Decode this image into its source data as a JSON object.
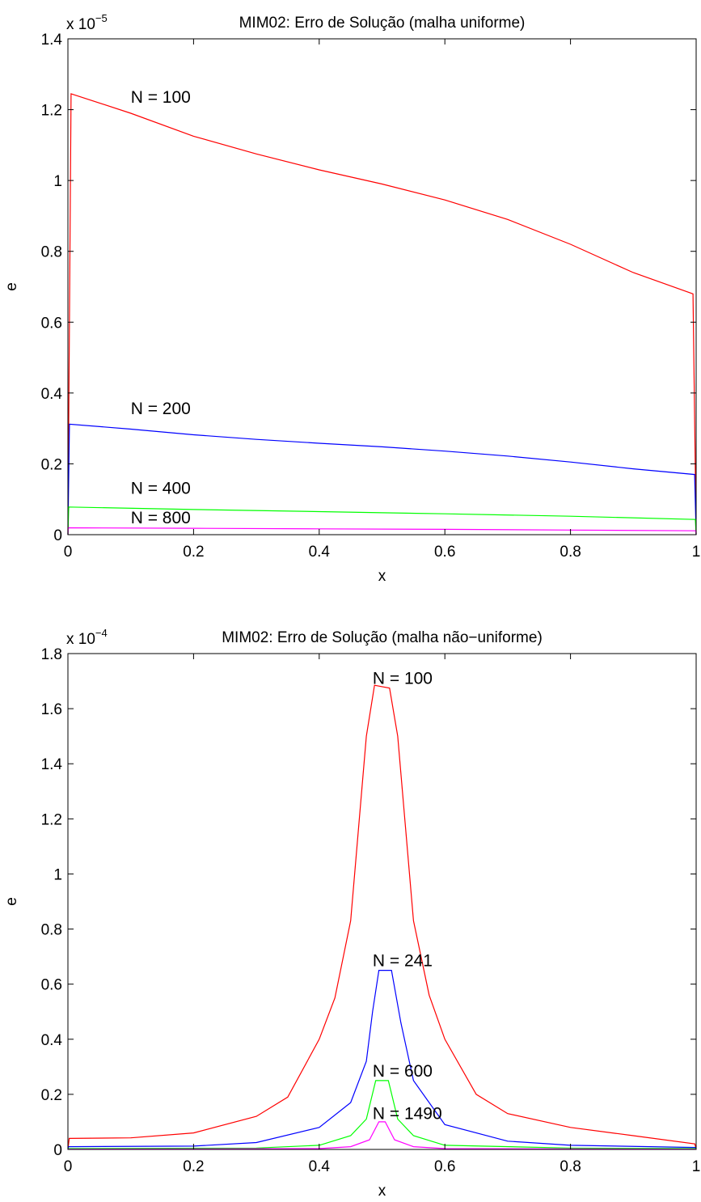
{
  "chart_data": [
    {
      "type": "line",
      "title": "MIM02: Erro de Solução (malha uniforme)",
      "xlabel": "x",
      "ylabel": "e",
      "exponent": {
        "base": "x 10",
        "power": "−5"
      },
      "xlim": [
        0,
        1
      ],
      "ylim": [
        0,
        1.4
      ],
      "xticks": [
        "0",
        "0.2",
        "0.4",
        "0.6",
        "0.8",
        "1"
      ],
      "yticks": [
        "0",
        "0.2",
        "0.4",
        "0.6",
        "0.8",
        "1",
        "1.2",
        "1.4"
      ],
      "grid": false,
      "series": [
        {
          "name": "N = 100",
          "color": "#ff0000",
          "label_at": [
            0.1,
            1.22
          ],
          "points": [
            [
              0,
              0
            ],
            [
              0.005,
              1.245
            ],
            [
              0.1,
              1.19
            ],
            [
              0.2,
              1.125
            ],
            [
              0.3,
              1.075
            ],
            [
              0.4,
              1.03
            ],
            [
              0.5,
              0.99
            ],
            [
              0.6,
              0.945
            ],
            [
              0.7,
              0.89
            ],
            [
              0.8,
              0.82
            ],
            [
              0.9,
              0.74
            ],
            [
              0.995,
              0.68
            ],
            [
              1,
              0
            ]
          ]
        },
        {
          "name": "N = 200",
          "color": "#0000ff",
          "label_at": [
            0.1,
            0.34
          ],
          "points": [
            [
              0,
              0
            ],
            [
              0.0025,
              0.312
            ],
            [
              0.1,
              0.298
            ],
            [
              0.2,
              0.282
            ],
            [
              0.3,
              0.269
            ],
            [
              0.4,
              0.258
            ],
            [
              0.5,
              0.248
            ],
            [
              0.6,
              0.236
            ],
            [
              0.7,
              0.222
            ],
            [
              0.8,
              0.205
            ],
            [
              0.9,
              0.186
            ],
            [
              0.9975,
              0.17
            ],
            [
              1,
              0
            ]
          ]
        },
        {
          "name": "N = 400",
          "color": "#00ff00",
          "label_at": [
            0.1,
            0.115
          ],
          "points": [
            [
              0,
              0
            ],
            [
              0.00125,
              0.078
            ],
            [
              0.2,
              0.071
            ],
            [
              0.4,
              0.065
            ],
            [
              0.5,
              0.062
            ],
            [
              0.6,
              0.059
            ],
            [
              0.8,
              0.052
            ],
            [
              0.99875,
              0.043
            ],
            [
              1,
              0
            ]
          ]
        },
        {
          "name": "N = 800",
          "color": "#ff00ff",
          "label_at": [
            0.1,
            0.032
          ],
          "points": [
            [
              0,
              0
            ],
            [
              0.000625,
              0.0195
            ],
            [
              0.2,
              0.018
            ],
            [
              0.4,
              0.0165
            ],
            [
              0.6,
              0.015
            ],
            [
              0.8,
              0.013
            ],
            [
              0.999375,
              0.011
            ],
            [
              1,
              0
            ]
          ]
        }
      ]
    },
    {
      "type": "line",
      "title": "MIM02: Erro de Solução (malha não−uniforme)",
      "xlabel": "x",
      "ylabel": "e",
      "exponent": {
        "base": "x 10",
        "power": "−4"
      },
      "xlim": [
        0,
        1
      ],
      "ylim": [
        0,
        1.8
      ],
      "xticks": [
        "0",
        "0.2",
        "0.4",
        "0.6",
        "0.8",
        "1"
      ],
      "yticks": [
        "0",
        "0.2",
        "0.4",
        "0.6",
        "0.8",
        "1",
        "1.2",
        "1.4",
        "1.6",
        "1.8"
      ],
      "grid": false,
      "series": [
        {
          "name": "N = 100",
          "color": "#ff0000",
          "label_at": [
            0.485,
            1.69
          ],
          "points": [
            [
              0,
              0
            ],
            [
              0.002,
              0.04
            ],
            [
              0.1,
              0.042
            ],
            [
              0.2,
              0.06
            ],
            [
              0.3,
              0.12
            ],
            [
              0.35,
              0.19
            ],
            [
              0.4,
              0.4
            ],
            [
              0.425,
              0.55
            ],
            [
              0.45,
              0.83
            ],
            [
              0.475,
              1.5
            ],
            [
              0.488,
              1.685
            ],
            [
              0.512,
              1.675
            ],
            [
              0.525,
              1.5
            ],
            [
              0.55,
              0.83
            ],
            [
              0.575,
              0.56
            ],
            [
              0.6,
              0.4
            ],
            [
              0.65,
              0.2
            ],
            [
              0.7,
              0.13
            ],
            [
              0.8,
              0.08
            ],
            [
              0.9,
              0.05
            ],
            [
              0.998,
              0.02
            ],
            [
              1,
              0
            ]
          ]
        },
        {
          "name": "N = 241",
          "color": "#0000ff",
          "label_at": [
            0.485,
            0.665
          ],
          "points": [
            [
              0,
              0
            ],
            [
              0.001,
              0.01
            ],
            [
              0.2,
              0.012
            ],
            [
              0.3,
              0.025
            ],
            [
              0.4,
              0.08
            ],
            [
              0.45,
              0.17
            ],
            [
              0.475,
              0.32
            ],
            [
              0.485,
              0.5
            ],
            [
              0.495,
              0.65
            ],
            [
              0.515,
              0.65
            ],
            [
              0.53,
              0.46
            ],
            [
              0.55,
              0.25
            ],
            [
              0.6,
              0.09
            ],
            [
              0.7,
              0.03
            ],
            [
              0.8,
              0.015
            ],
            [
              0.999,
              0.007
            ],
            [
              1,
              0
            ]
          ]
        },
        {
          "name": "N = 600",
          "color": "#00ff00",
          "label_at": [
            0.485,
            0.265
          ],
          "points": [
            [
              0,
              0
            ],
            [
              0.001,
              0.003
            ],
            [
              0.3,
              0.005
            ],
            [
              0.4,
              0.015
            ],
            [
              0.45,
              0.05
            ],
            [
              0.475,
              0.11
            ],
            [
              0.49,
              0.25
            ],
            [
              0.51,
              0.25
            ],
            [
              0.525,
              0.11
            ],
            [
              0.55,
              0.05
            ],
            [
              0.6,
              0.015
            ],
            [
              0.8,
              0.005
            ],
            [
              0.999,
              0.003
            ],
            [
              1,
              0
            ]
          ]
        },
        {
          "name": "N = 1490",
          "color": "#ff00ff",
          "label_at": [
            0.485,
            0.11
          ],
          "points": [
            [
              0,
              0
            ],
            [
              0.001,
              0.001
            ],
            [
              0.4,
              0.003
            ],
            [
              0.45,
              0.01
            ],
            [
              0.48,
              0.035
            ],
            [
              0.495,
              0.1
            ],
            [
              0.505,
              0.1
            ],
            [
              0.52,
              0.035
            ],
            [
              0.55,
              0.01
            ],
            [
              0.6,
              0.003
            ],
            [
              0.999,
              0.001
            ],
            [
              1,
              0
            ]
          ]
        }
      ]
    }
  ]
}
